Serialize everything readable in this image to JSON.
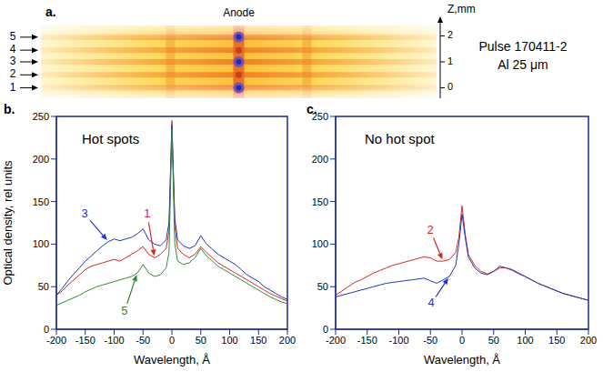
{
  "annotations": [
    "Pulse 170411-2",
    "Al 25 μm"
  ],
  "chart_data": [
    {
      "type": "image",
      "panel": "a.",
      "title": "Anode",
      "ylabel": "Z,mm",
      "ylim": [
        -0.4,
        2.4
      ],
      "yticks": [
        0,
        1,
        2
      ],
      "lines": [
        {
          "label": "1",
          "z": 0,
          "hot_spot": true
        },
        {
          "label": "2",
          "z": 0.5,
          "hot_spot": false
        },
        {
          "label": "3",
          "z": 1,
          "hot_spot": true
        },
        {
          "label": "4",
          "z": 1.45,
          "hot_spot": false
        },
        {
          "label": "5",
          "z": 1.95,
          "hot_spot": true
        }
      ]
    },
    {
      "type": "line",
      "panel": "b.",
      "title": "Hot spots",
      "xlabel": "Wavelength, Å",
      "ylabel": "Optical density, rel units",
      "xlim": [
        -200,
        200
      ],
      "xticks": [
        -200,
        -150,
        -100,
        -50,
        0,
        50,
        100,
        150,
        200
      ],
      "ylim": [
        0,
        250
      ],
      "yticks": [
        0,
        50,
        100,
        150,
        200,
        250
      ],
      "x": [
        -200,
        -190,
        -180,
        -170,
        -160,
        -150,
        -140,
        -130,
        -120,
        -110,
        -100,
        -90,
        -80,
        -70,
        -60,
        -50,
        -40,
        -30,
        -20,
        -10,
        -5,
        0,
        5,
        10,
        20,
        30,
        40,
        50,
        60,
        70,
        80,
        90,
        100,
        110,
        120,
        130,
        140,
        150,
        160,
        170,
        180,
        190,
        200
      ],
      "series": [
        {
          "name": "1",
          "color": "#d42a1e",
          "values": [
            40,
            45,
            52,
            58,
            64,
            70,
            74,
            76,
            78,
            80,
            82,
            80,
            84,
            88,
            92,
            97,
            88,
            84,
            88,
            95,
            115,
            245,
            120,
            95,
            88,
            84,
            88,
            97,
            90,
            84,
            78,
            74,
            70,
            66,
            62,
            58,
            54,
            50,
            46,
            42,
            39,
            36,
            33
          ]
        },
        {
          "name": "3",
          "color": "#1f35c4",
          "values": [
            40,
            48,
            57,
            65,
            72,
            80,
            86,
            92,
            98,
            103,
            106,
            104,
            106,
            108,
            112,
            118,
            105,
            100,
            98,
            105,
            125,
            240,
            130,
            105,
            98,
            95,
            98,
            110,
            100,
            94,
            88,
            84,
            80,
            76,
            70,
            64,
            60,
            56,
            50,
            46,
            42,
            38,
            35
          ]
        },
        {
          "name": "5",
          "color": "#2f8a3a",
          "values": [
            28,
            31,
            34,
            37,
            40,
            44,
            47,
            50,
            52,
            54,
            56,
            58,
            60,
            62,
            66,
            76,
            66,
            62,
            64,
            72,
            90,
            235,
            100,
            80,
            76,
            78,
            84,
            95,
            86,
            80,
            74,
            70,
            66,
            62,
            58,
            54,
            50,
            46,
            42,
            38,
            35,
            32,
            30
          ]
        }
      ]
    },
    {
      "type": "line",
      "panel": "c.",
      "title": "No hot spot",
      "xlabel": "Wavelength, Å",
      "xlim": [
        -200,
        200
      ],
      "xticks": [
        -200,
        -150,
        -100,
        -50,
        0,
        50,
        100,
        150,
        200
      ],
      "ylim": [
        0,
        250
      ],
      "yticks": [
        0,
        50,
        100,
        150,
        200,
        250
      ],
      "x": [
        -200,
        -190,
        -180,
        -170,
        -160,
        -150,
        -140,
        -130,
        -120,
        -110,
        -100,
        -90,
        -80,
        -70,
        -60,
        -50,
        -40,
        -30,
        -20,
        -10,
        -5,
        0,
        5,
        10,
        20,
        30,
        40,
        50,
        60,
        70,
        80,
        90,
        100,
        110,
        120,
        130,
        140,
        150,
        160,
        170,
        180,
        190,
        200
      ],
      "series": [
        {
          "name": "2",
          "color": "#d42a1e",
          "values": [
            40,
            45,
            50,
            55,
            58,
            62,
            66,
            69,
            72,
            75,
            77,
            79,
            81,
            83,
            85,
            84,
            80,
            80,
            82,
            90,
            108,
            145,
            112,
            88,
            75,
            68,
            65,
            68,
            72,
            72,
            70,
            66,
            62,
            58,
            54,
            51,
            48,
            45,
            42,
            40,
            38,
            36,
            34
          ]
        },
        {
          "name": "4",
          "color": "#1f35c4",
          "values": [
            38,
            40,
            42,
            44,
            46,
            48,
            50,
            52,
            54,
            55,
            56,
            57,
            58,
            59,
            60,
            57,
            54,
            58,
            62,
            75,
            100,
            135,
            108,
            85,
            72,
            66,
            64,
            68,
            74,
            72,
            69,
            65,
            62,
            58,
            54,
            51,
            48,
            45,
            42,
            40,
            38,
            36,
            34
          ]
        }
      ]
    }
  ]
}
